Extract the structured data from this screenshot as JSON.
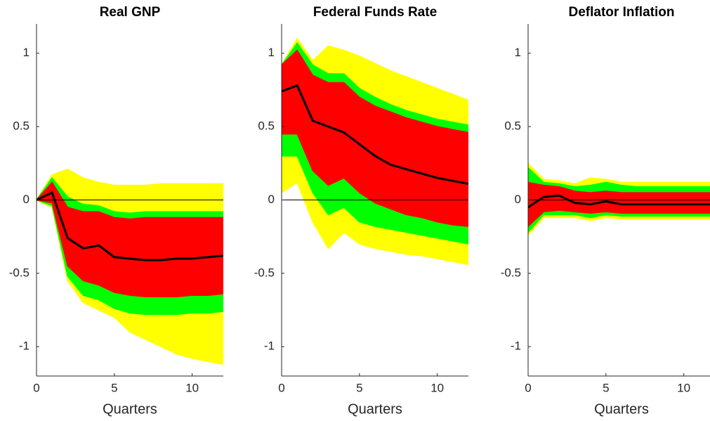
{
  "chart_data": [
    {
      "type": "line",
      "title": "Real GNP",
      "x_label": "Quarters",
      "x": [
        0,
        1,
        2,
        3,
        4,
        5,
        6,
        7,
        8,
        9,
        10,
        11,
        12
      ],
      "xlim": [
        0,
        12
      ],
      "xticks": [
        0,
        5,
        10
      ],
      "ylim": [
        -1.2,
        1.2
      ],
      "yticks": [
        -1,
        -0.5,
        0,
        0.5,
        1
      ],
      "reference_line": 0,
      "bands": [
        {
          "color": "#ffff00",
          "upper": [
            0,
            0.17,
            0.21,
            0.15,
            0.12,
            0.1,
            0.1,
            0.1,
            0.11,
            0.11,
            0.11,
            0.11,
            0.11
          ],
          "lower": [
            0,
            -0.05,
            -0.55,
            -0.7,
            -0.75,
            -0.8,
            -0.9,
            -0.95,
            -1.0,
            -1.05,
            -1.08,
            -1.1,
            -1.12
          ]
        },
        {
          "color": "#00ff00",
          "upper": [
            0,
            0.15,
            0.02,
            -0.03,
            -0.04,
            -0.08,
            -0.09,
            -0.08,
            -0.08,
            -0.08,
            -0.08,
            -0.08,
            -0.08
          ],
          "lower": [
            0,
            -0.04,
            -0.52,
            -0.65,
            -0.68,
            -0.74,
            -0.77,
            -0.78,
            -0.78,
            -0.78,
            -0.77,
            -0.77,
            -0.76
          ]
        },
        {
          "color": "#ff0000",
          "upper": [
            0,
            0.12,
            -0.05,
            -0.08,
            -0.08,
            -0.12,
            -0.13,
            -0.12,
            -0.12,
            -0.12,
            -0.12,
            -0.12,
            -0.12
          ],
          "lower": [
            0,
            -0.02,
            -0.45,
            -0.55,
            -0.58,
            -0.63,
            -0.65,
            -0.66,
            -0.66,
            -0.66,
            -0.65,
            -0.65,
            -0.64
          ]
        }
      ],
      "series": [
        {
          "color": "#000000",
          "values": [
            0,
            0.05,
            -0.26,
            -0.33,
            -0.31,
            -0.39,
            -0.4,
            -0.41,
            -0.41,
            -0.4,
            -0.4,
            -0.39,
            -0.38
          ]
        }
      ]
    },
    {
      "type": "line",
      "title": "Federal Funds Rate",
      "x_label": "Quarters",
      "x": [
        0,
        1,
        2,
        3,
        4,
        5,
        6,
        7,
        8,
        9,
        10,
        11,
        12
      ],
      "xlim": [
        0,
        12
      ],
      "xticks": [
        0,
        5,
        10
      ],
      "ylim": [
        -1.2,
        1.2
      ],
      "yticks": [
        -1,
        -0.5,
        0,
        0.5,
        1
      ],
      "reference_line": 0,
      "bands": [
        {
          "color": "#ffff00",
          "upper": [
            0.92,
            1.1,
            0.95,
            1.05,
            1.02,
            0.98,
            0.93,
            0.88,
            0.84,
            0.8,
            0.76,
            0.72,
            0.68
          ],
          "lower": [
            0.05,
            0.12,
            -0.15,
            -0.33,
            -0.22,
            -0.3,
            -0.33,
            -0.35,
            -0.37,
            -0.38,
            -0.4,
            -0.42,
            -0.44
          ]
        },
        {
          "color": "#00ff00",
          "upper": [
            0.92,
            1.07,
            0.92,
            0.86,
            0.86,
            0.76,
            0.7,
            0.65,
            0.61,
            0.58,
            0.55,
            0.53,
            0.51
          ],
          "lower": [
            0.3,
            0.3,
            0.05,
            -0.1,
            -0.05,
            -0.15,
            -0.18,
            -0.2,
            -0.22,
            -0.24,
            -0.26,
            -0.28,
            -0.3
          ]
        },
        {
          "color": "#ff0000",
          "upper": [
            0.92,
            1.02,
            0.85,
            0.8,
            0.8,
            0.7,
            0.64,
            0.6,
            0.56,
            0.53,
            0.5,
            0.48,
            0.46
          ],
          "lower": [
            0.45,
            0.45,
            0.2,
            0.1,
            0.15,
            0.05,
            -0.02,
            -0.06,
            -0.1,
            -0.12,
            -0.15,
            -0.17,
            -0.18
          ]
        }
      ],
      "series": [
        {
          "color": "#000000",
          "values": [
            0.74,
            0.78,
            0.54,
            0.5,
            0.46,
            0.38,
            0.3,
            0.24,
            0.21,
            0.18,
            0.15,
            0.13,
            0.11
          ]
        }
      ]
    },
    {
      "type": "line",
      "title": "Deflator Inflation",
      "x_label": "Quarters",
      "x": [
        0,
        1,
        2,
        3,
        4,
        5,
        6,
        7,
        8,
        9,
        10,
        11,
        12
      ],
      "xlim": [
        0,
        12
      ],
      "xticks": [
        0,
        5,
        10
      ],
      "ylim": [
        -1.2,
        1.2
      ],
      "yticks": [
        -1,
        -0.5,
        0,
        0.5,
        1
      ],
      "reference_line": 0,
      "bands": [
        {
          "color": "#ffff00",
          "upper": [
            0.25,
            0.14,
            0.13,
            0.11,
            0.15,
            0.14,
            0.12,
            0.12,
            0.12,
            0.12,
            0.12,
            0.12,
            0.12
          ],
          "lower": [
            -0.24,
            -0.12,
            -0.12,
            -0.12,
            -0.14,
            -0.12,
            -0.13,
            -0.13,
            -0.13,
            -0.13,
            -0.13,
            -0.13,
            -0.13
          ]
        },
        {
          "color": "#00ff00",
          "upper": [
            0.22,
            0.12,
            0.11,
            0.09,
            0.1,
            0.12,
            0.1,
            0.09,
            0.09,
            0.09,
            0.09,
            0.09,
            0.09
          ],
          "lower": [
            -0.22,
            -0.1,
            -0.1,
            -0.1,
            -0.12,
            -0.1,
            -0.11,
            -0.11,
            -0.11,
            -0.11,
            -0.11,
            -0.11,
            -0.11
          ]
        },
        {
          "color": "#ff0000",
          "upper": [
            0.12,
            0.1,
            0.09,
            0.06,
            0.05,
            0.06,
            0.05,
            0.05,
            0.05,
            0.05,
            0.05,
            0.05,
            0.05
          ],
          "lower": [
            -0.18,
            -0.08,
            -0.07,
            -0.08,
            -0.09,
            -0.08,
            -0.09,
            -0.09,
            -0.09,
            -0.09,
            -0.09,
            -0.09,
            -0.09
          ]
        }
      ],
      "series": [
        {
          "color": "#000000",
          "values": [
            -0.05,
            0.02,
            0.03,
            -0.02,
            -0.03,
            -0.01,
            -0.03,
            -0.03,
            -0.03,
            -0.03,
            -0.03,
            -0.03,
            -0.03
          ]
        }
      ]
    }
  ]
}
